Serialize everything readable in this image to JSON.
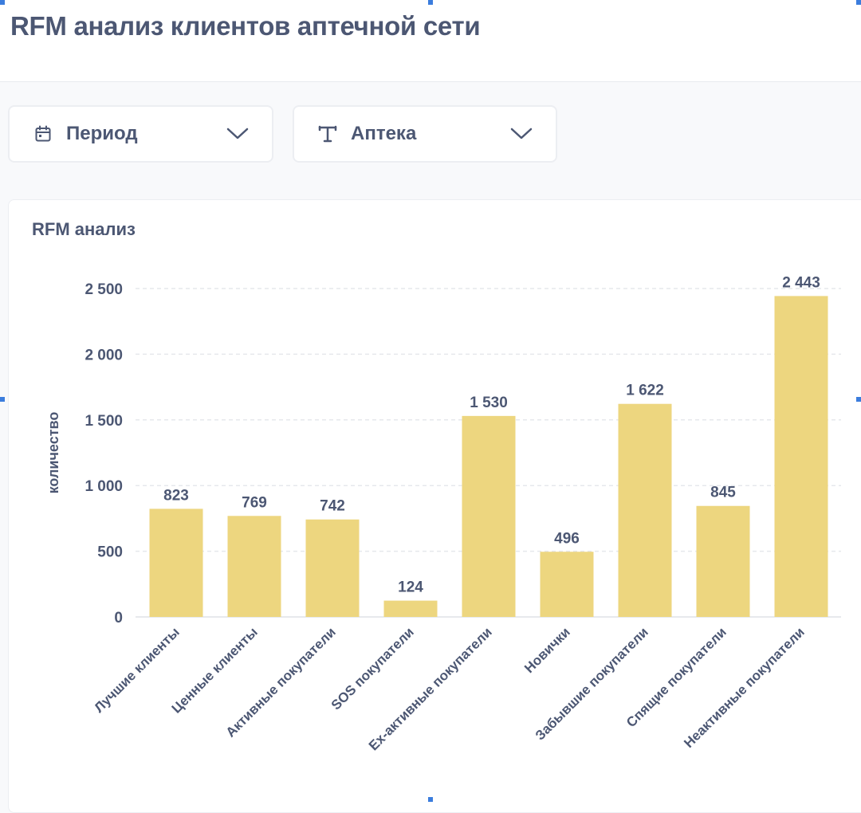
{
  "page": {
    "title": "RFM анализ клиентов аптечной сети"
  },
  "filters": {
    "period": {
      "label": "Период",
      "icon": "calendar-icon"
    },
    "pharmacy": {
      "label": "Аптека",
      "icon": "text-type-icon"
    }
  },
  "card": {
    "title": "RFM анализ"
  },
  "colors": {
    "bar": "#edd67f",
    "text": "#4c5773",
    "grid": "#e6e8ec"
  },
  "chart_data": {
    "type": "bar",
    "title": "RFM анализ",
    "xlabel": "",
    "ylabel": "количество",
    "ylim": [
      0,
      2500
    ],
    "yticks": [
      0,
      500,
      1000,
      1500,
      2000,
      2500
    ],
    "ytick_labels": [
      "0",
      "500",
      "1 000",
      "1 500",
      "2 000",
      "2 500"
    ],
    "grid": true,
    "categories": [
      "Лучшие клиенты",
      "Ценные клиенты",
      "Активные покупатели",
      "SOS покупатели",
      "Ex-активные покупатели",
      "Новички",
      "Забывшие покупатели",
      "Спящие покупатели",
      "Неактивные покупатели"
    ],
    "values": [
      823,
      769,
      742,
      124,
      1530,
      496,
      1622,
      845,
      2443
    ],
    "value_labels": [
      "823",
      "769",
      "742",
      "124",
      "1 530",
      "496",
      "1 622",
      "845",
      "2 443"
    ]
  }
}
